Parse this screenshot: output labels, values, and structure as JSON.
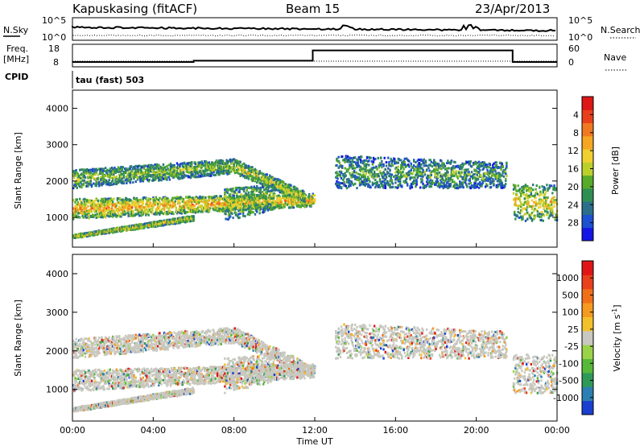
{
  "header": {
    "station": "Kapuskasing (fitACF)",
    "beam": "Beam 15",
    "date": "23/Apr/2013"
  },
  "noise_panel": {
    "left_label": "N.Sky",
    "right_label": "N.Search",
    "ticks_top": "10^5",
    "ticks_bottom": "10^0",
    "right_ticks_top": "10^5",
    "right_ticks_bottom": "10^0"
  },
  "freq_panel": {
    "label": "Freq.",
    "unit": "[MHz]",
    "cpid_label": "CPID",
    "right_label": "Nave",
    "left_ticks": [
      "18",
      "8"
    ],
    "right_ticks": [
      "60",
      "0"
    ],
    "cpid_text": "tau (fast) 503"
  },
  "time_axis": {
    "label": "Time UT",
    "ticks": [
      "00:00",
      "04:00",
      "08:00",
      "12:00",
      "16:00",
      "20:00",
      "00:00"
    ]
  },
  "chart_data": [
    {
      "type": "heatmap",
      "name": "power",
      "ylabel": "Slant Range [km]",
      "ylim": [
        180,
        4500
      ],
      "yticks": [
        "1000",
        "2000",
        "3000",
        "4000"
      ],
      "xlim": [
        0,
        24
      ],
      "colorbar": {
        "label": "Power [dB]",
        "ticks": [
          "4",
          "8",
          "12",
          "16",
          "20",
          "24",
          "28"
        ],
        "colors": [
          "#1414e6",
          "#1e50d2",
          "#2c6f8a",
          "#2f8f53",
          "#58aa2a",
          "#bcd02c",
          "#f0d030",
          "#f5a623",
          "#f07820",
          "#e8401c",
          "#dd1616"
        ]
      },
      "bands": [
        {
          "t0": 0.0,
          "t1": 6.0,
          "r0": 420,
          "r1": 520,
          "r0e": 900,
          "r1e": 1050,
          "level": 0.6
        },
        {
          "t0": 0.0,
          "t1": 12.0,
          "r0": 950,
          "r1": 1500,
          "r0e": 1300,
          "r1e": 1650,
          "level": 0.7
        },
        {
          "t0": 0.0,
          "t1": 8.0,
          "r0": 1800,
          "r1": 2300,
          "r0e": 2200,
          "r1e": 2600,
          "level": 0.45
        },
        {
          "t0": 8.0,
          "t1": 11.5,
          "r0": 2200,
          "r1": 2600,
          "r0e": 1400,
          "r1e": 1700,
          "level": 0.55
        },
        {
          "t0": 7.5,
          "t1": 10.0,
          "r0": 900,
          "r1": 1800,
          "r0e": 1200,
          "r1e": 1900,
          "level": 0.5
        },
        {
          "t0": 13.0,
          "t1": 21.5,
          "r0": 1800,
          "r1": 2700,
          "r0e": 1800,
          "r1e": 2500,
          "level": 0.35
        },
        {
          "t0": 21.8,
          "t1": 24.0,
          "r0": 900,
          "r1": 1900,
          "r0e": 900,
          "r1e": 1900,
          "level": 0.6
        }
      ]
    },
    {
      "type": "heatmap",
      "name": "velocity",
      "ylabel": "Slant Range [km]",
      "ylim": [
        180,
        4500
      ],
      "yticks": [
        "1000",
        "2000",
        "3000",
        "4000"
      ],
      "xlim": [
        0,
        24
      ],
      "colorbar": {
        "label": "Velocity [m s",
        "label_sup": "-1",
        "label_end": "]",
        "ticks": [
          "1000",
          "500",
          "100",
          "25",
          "-25",
          "-100",
          "-500",
          "-1000"
        ],
        "colors": [
          "#1a3fd0",
          "#2c7fb0",
          "#2f9a58",
          "#57b83a",
          "#9ad24a",
          "#c8c8c0",
          "#f2c02c",
          "#f59a20",
          "#f0701a",
          "#e8401c",
          "#e01616"
        ]
      },
      "bands": [
        {
          "t0": 0.0,
          "t1": 6.0,
          "r0": 420,
          "r1": 520,
          "r0e": 900,
          "r1e": 1050,
          "level": 0.5
        },
        {
          "t0": 0.0,
          "t1": 12.0,
          "r0": 950,
          "r1": 1500,
          "r0e": 1300,
          "r1e": 1650,
          "level": 0.5
        },
        {
          "t0": 0.0,
          "t1": 8.0,
          "r0": 1800,
          "r1": 2300,
          "r0e": 2200,
          "r1e": 2600,
          "level": 0.5
        },
        {
          "t0": 8.0,
          "t1": 11.5,
          "r0": 2200,
          "r1": 2600,
          "r0e": 1400,
          "r1e": 1700,
          "level": 0.5
        },
        {
          "t0": 7.5,
          "t1": 10.0,
          "r0": 900,
          "r1": 1800,
          "r0e": 1200,
          "r1e": 1900,
          "level": 0.3
        },
        {
          "t0": 13.0,
          "t1": 21.5,
          "r0": 1800,
          "r1": 2700,
          "r0e": 1800,
          "r1e": 2500,
          "level": 0.5
        },
        {
          "t0": 21.8,
          "t1": 24.0,
          "r0": 900,
          "r1": 1900,
          "r0e": 900,
          "r1e": 1900,
          "level": 0.5
        }
      ]
    }
  ]
}
